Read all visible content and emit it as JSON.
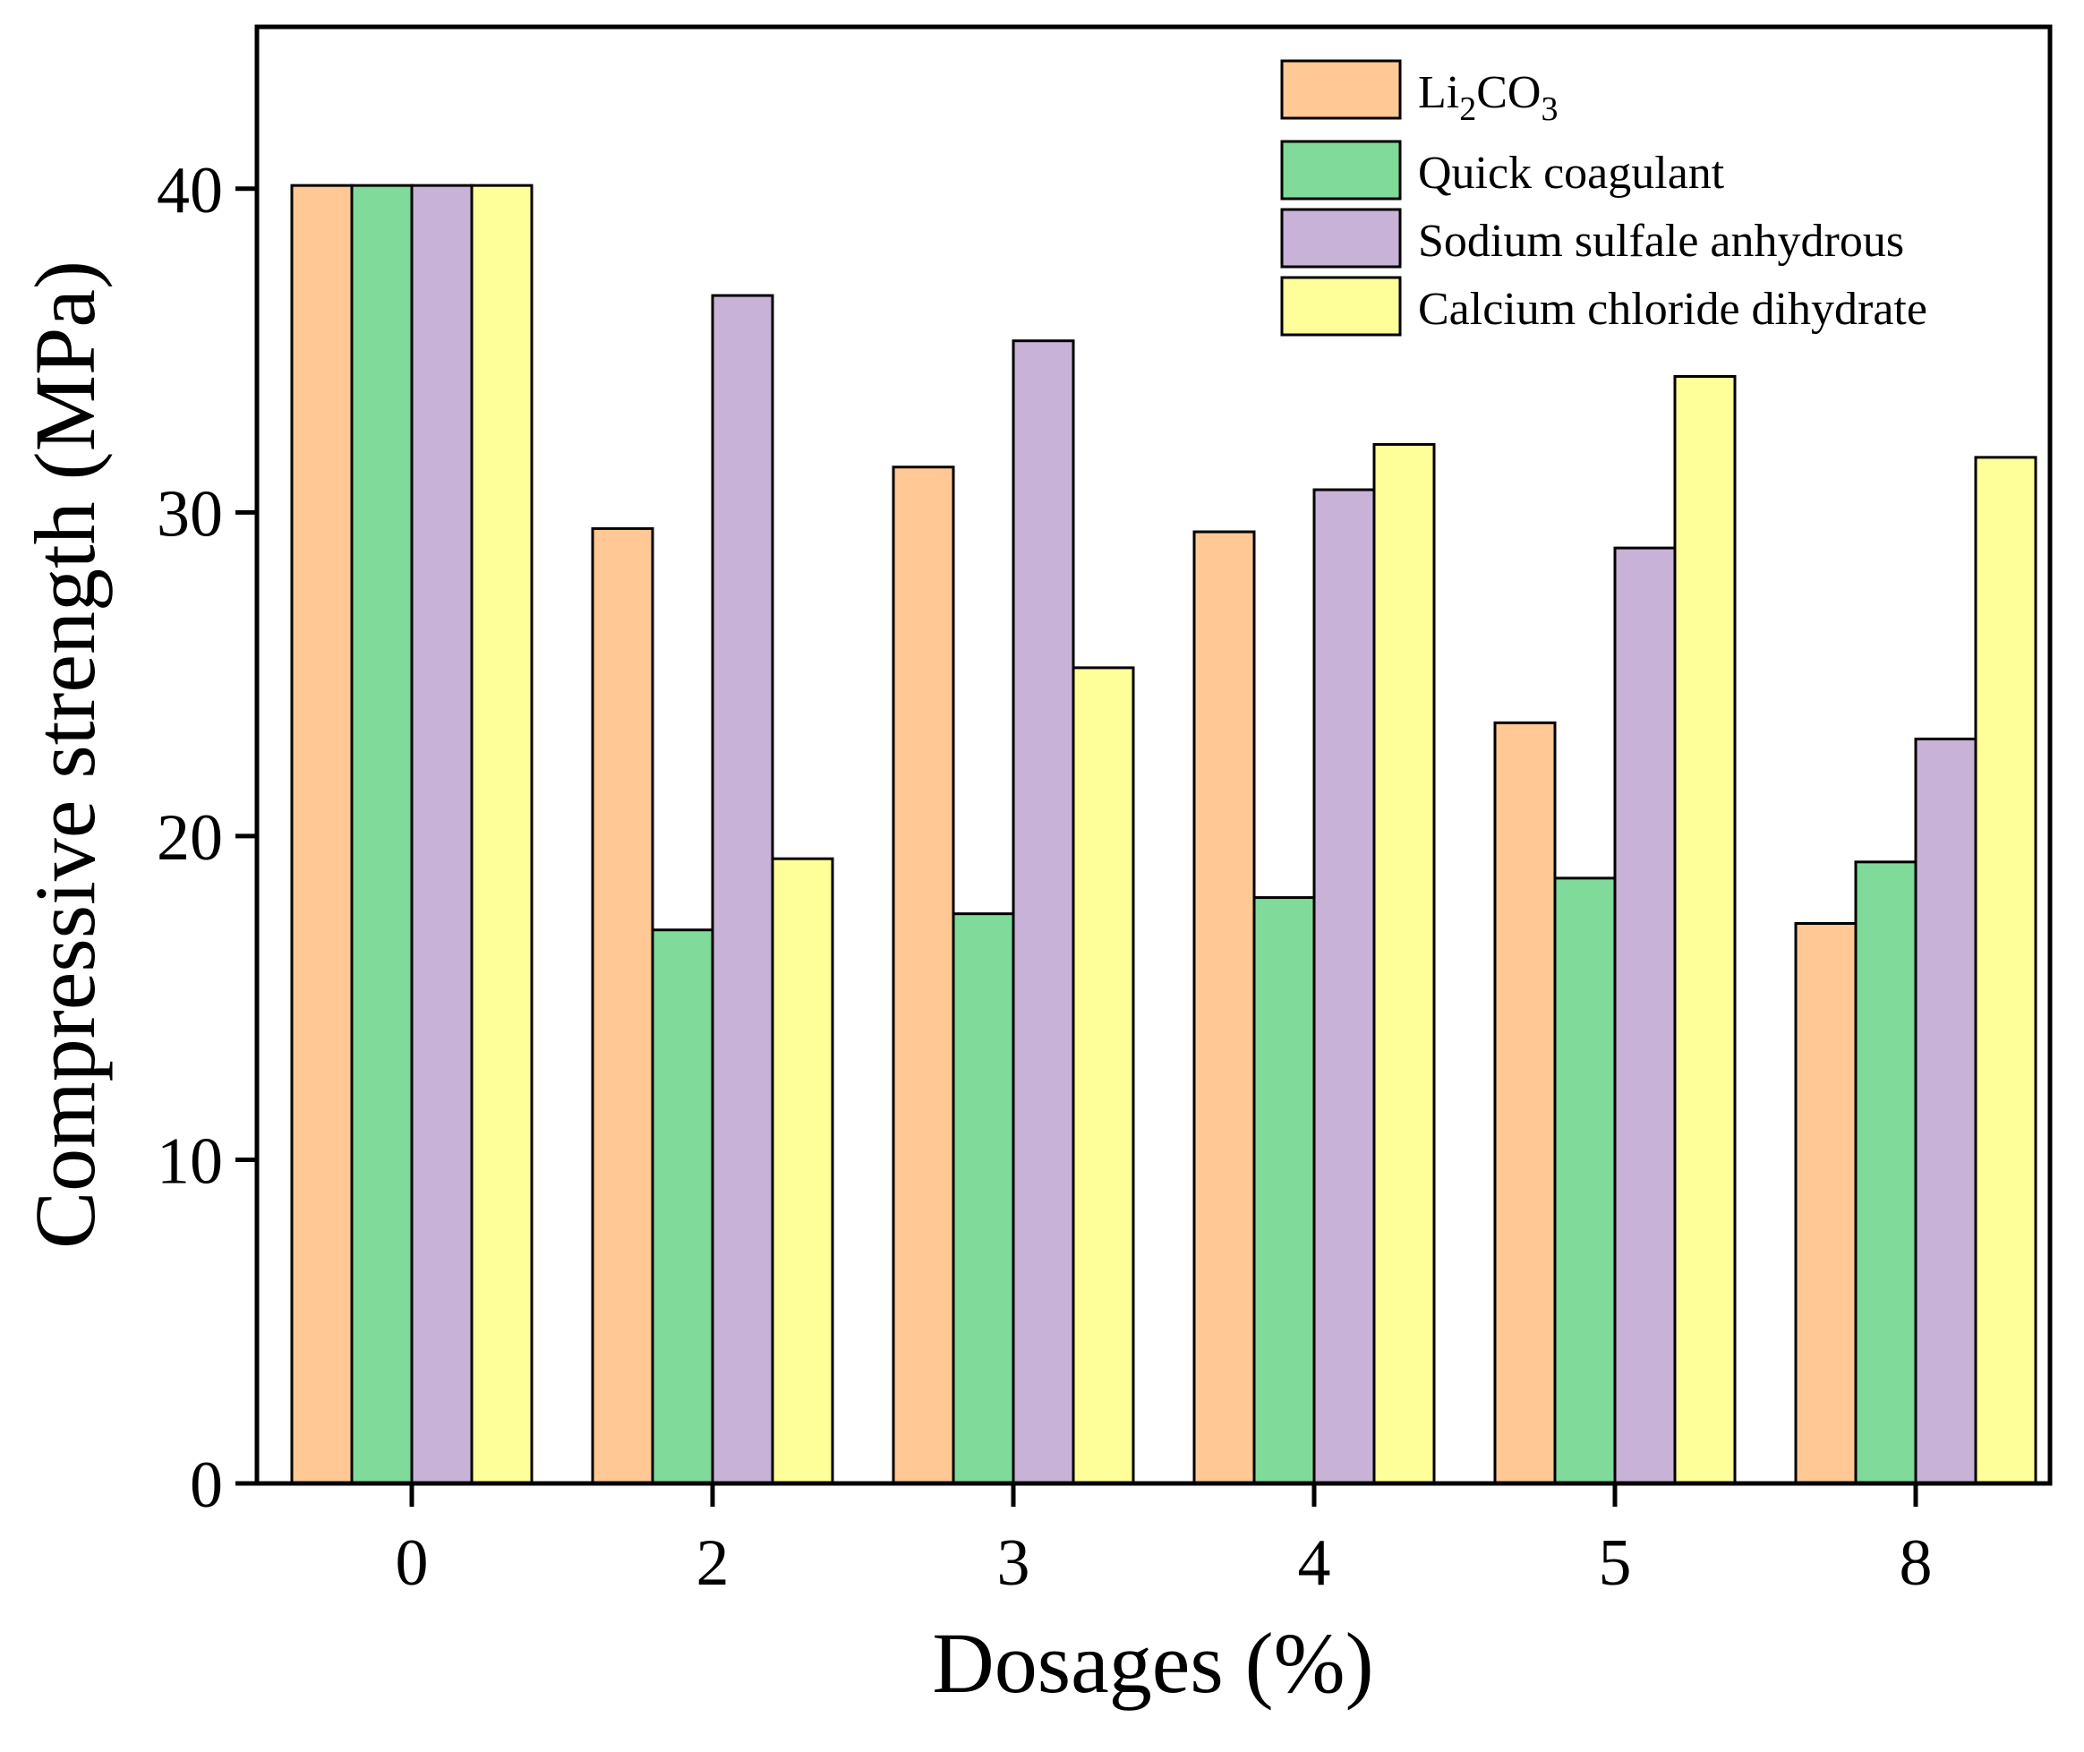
{
  "chart_data": {
    "type": "bar",
    "title": "",
    "xlabel": "Dosages (%)",
    "ylabel": "Compressive strength (MPa)",
    "categories": [
      "0",
      "2",
      "3",
      "4",
      "5",
      "8"
    ],
    "ylim": [
      0,
      45
    ],
    "yticks": [
      0,
      10,
      20,
      30,
      40
    ],
    "grid": false,
    "legend_position": "top-right",
    "series": [
      {
        "name": "Li2CO3",
        "color": "#FFC894",
        "values": [
          40.1,
          29.5,
          31.4,
          29.4,
          23.5,
          17.3
        ]
      },
      {
        "name": "Quick coagulant",
        "color": "#80DA9A",
        "values": [
          40.1,
          17.1,
          17.6,
          18.1,
          18.7,
          19.2
        ]
      },
      {
        "name": "Sodium sulfale anhydrous",
        "color": "#C8B2D8",
        "values": [
          40.1,
          36.7,
          35.3,
          30.7,
          28.9,
          23.0
        ]
      },
      {
        "name": "Calcium chloride dihydrate",
        "color": "#FFFF99",
        "values": [
          40.1,
          19.3,
          25.2,
          32.1,
          34.2,
          31.7
        ]
      }
    ],
    "legend_labels": {
      "li2co3": {
        "pre": "Li",
        "sub1": "2",
        "mid": "CO",
        "sub2": "3"
      }
    }
  }
}
